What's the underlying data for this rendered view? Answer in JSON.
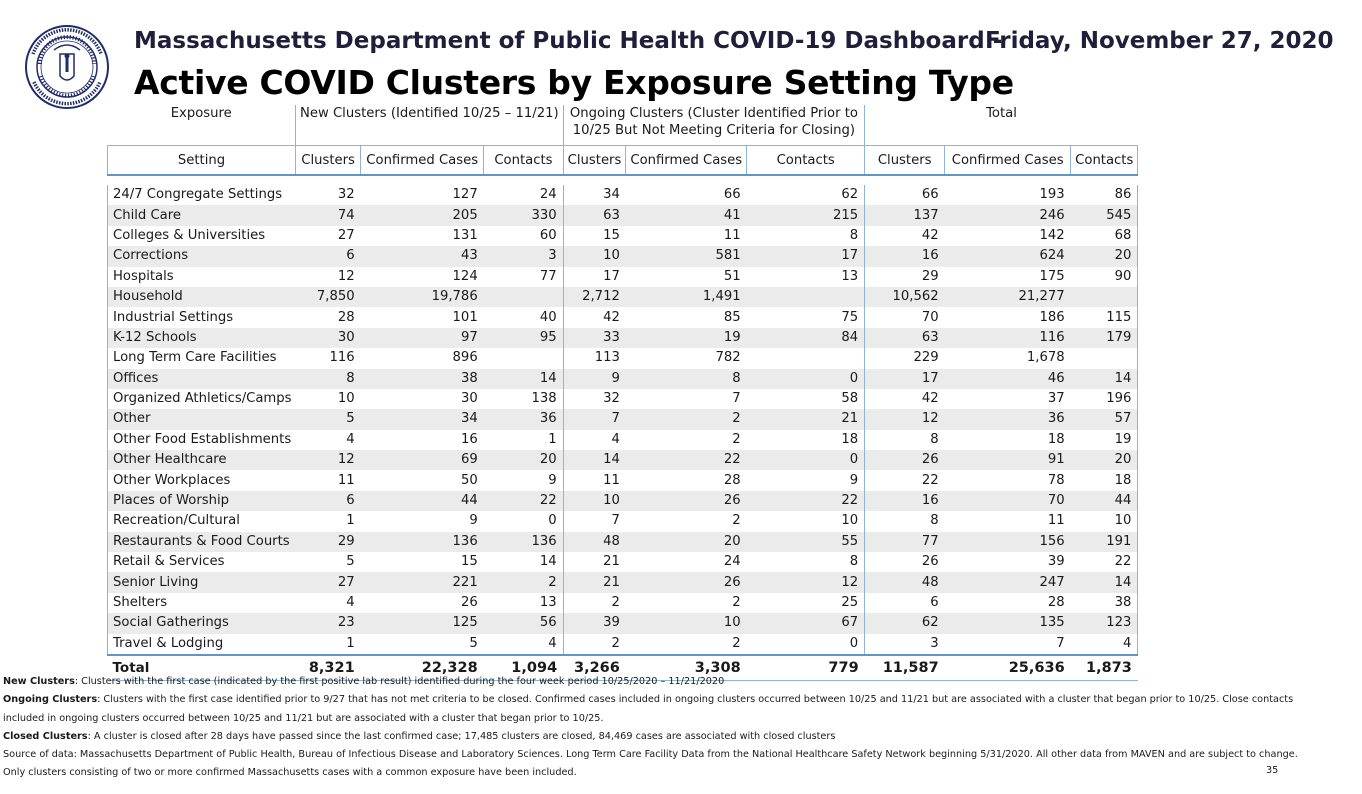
{
  "header": {
    "title_line1": "Massachusetts Department of Public Health COVID-19 Dashboard -",
    "date": "Friday, November 27, 2020",
    "title_line2": "Active COVID Clusters by Exposure Setting Type",
    "seal_text_top": "COMMONWEALTH OF MASSACHUSETTS",
    "seal_text_bottom": "DEPARTMENT OF PUBLIC HEALTH"
  },
  "table": {
    "group_headers": {
      "exposure": "Exposure",
      "new": "New Clusters (Identified 10/25 – 11/21)",
      "ongoing_line1": "Ongoing Clusters (Cluster Identified Prior to",
      "ongoing_line2": "10/25 But Not Meeting Criteria for Closing)",
      "total": "Total"
    },
    "sub_headers": [
      "Setting",
      "Clusters",
      "Confirmed Cases",
      "Contacts",
      "Clusters",
      "Confirmed Cases",
      "Contacts",
      "Clusters",
      "Confirmed Cases",
      "Contacts"
    ],
    "rows": [
      [
        "24/7 Congregate Settings",
        "32",
        "127",
        "24",
        "34",
        "66",
        "62",
        "66",
        "193",
        "86"
      ],
      [
        "Child Care",
        "74",
        "205",
        "330",
        "63",
        "41",
        "215",
        "137",
        "246",
        "545"
      ],
      [
        "Colleges & Universities",
        "27",
        "131",
        "60",
        "15",
        "11",
        "8",
        "42",
        "142",
        "68"
      ],
      [
        "Corrections",
        "6",
        "43",
        "3",
        "10",
        "581",
        "17",
        "16",
        "624",
        "20"
      ],
      [
        "Hospitals",
        "12",
        "124",
        "77",
        "17",
        "51",
        "13",
        "29",
        "175",
        "90"
      ],
      [
        "Household",
        "7,850",
        "19,786",
        "",
        "2,712",
        "1,491",
        "",
        "10,562",
        "21,277",
        ""
      ],
      [
        "Industrial Settings",
        "28",
        "101",
        "40",
        "42",
        "85",
        "75",
        "70",
        "186",
        "115"
      ],
      [
        "K-12 Schools",
        "30",
        "97",
        "95",
        "33",
        "19",
        "84",
        "63",
        "116",
        "179"
      ],
      [
        "Long Term Care Facilities",
        "116",
        "896",
        "",
        "113",
        "782",
        "",
        "229",
        "1,678",
        ""
      ],
      [
        "Offices",
        "8",
        "38",
        "14",
        "9",
        "8",
        "0",
        "17",
        "46",
        "14"
      ],
      [
        "Organized Athletics/Camps",
        "10",
        "30",
        "138",
        "32",
        "7",
        "58",
        "42",
        "37",
        "196"
      ],
      [
        "Other",
        "5",
        "34",
        "36",
        "7",
        "2",
        "21",
        "12",
        "36",
        "57"
      ],
      [
        "Other Food Establishments",
        "4",
        "16",
        "1",
        "4",
        "2",
        "18",
        "8",
        "18",
        "19"
      ],
      [
        "Other Healthcare",
        "12",
        "69",
        "20",
        "14",
        "22",
        "0",
        "26",
        "91",
        "20"
      ],
      [
        "Other Workplaces",
        "11",
        "50",
        "9",
        "11",
        "28",
        "9",
        "22",
        "78",
        "18"
      ],
      [
        "Places of Worship",
        "6",
        "44",
        "22",
        "10",
        "26",
        "22",
        "16",
        "70",
        "44"
      ],
      [
        "Recreation/Cultural",
        "1",
        "9",
        "0",
        "7",
        "2",
        "10",
        "8",
        "11",
        "10"
      ],
      [
        "Restaurants & Food Courts",
        "29",
        "136",
        "136",
        "48",
        "20",
        "55",
        "77",
        "156",
        "191"
      ],
      [
        "Retail & Services",
        "5",
        "15",
        "14",
        "21",
        "24",
        "8",
        "26",
        "39",
        "22"
      ],
      [
        "Senior Living",
        "27",
        "221",
        "2",
        "21",
        "26",
        "12",
        "48",
        "247",
        "14"
      ],
      [
        "Shelters",
        "4",
        "26",
        "13",
        "2",
        "2",
        "25",
        "6",
        "28",
        "38"
      ],
      [
        "Social Gatherings",
        "23",
        "125",
        "56",
        "39",
        "10",
        "67",
        "62",
        "135",
        "123"
      ],
      [
        "Travel & Lodging",
        "1",
        "5",
        "4",
        "2",
        "2",
        "0",
        "3",
        "7",
        "4"
      ]
    ],
    "total_row": [
      "Total",
      "8,321",
      "22,328",
      "1,094",
      "3,266",
      "3,308",
      "779",
      "11,587",
      "25,636",
      "1,873"
    ]
  },
  "notes": {
    "new_label": "New Clusters",
    "new_text": ": Clusters with the first case (indicated by the first positive lab result) identified during the four week period 10/25/2020 – 11/21/2020",
    "ongoing_label": "Ongoing Clusters",
    "ongoing_text": ": Clusters with the first case identified prior to 9/27 that has not met criteria to be closed.  Confirmed cases included in ongoing clusters occurred between 10/25 and 11/21  but are associated with a cluster that began prior to 10/25. Close contacts",
    "ongoing_text2": "included in ongoing clusters occurred between 10/25 and 11/21  but are associated with a cluster that began prior to 10/25.",
    "closed_label": "Closed Clusters",
    "closed_text": ": A cluster is closed after 28 days have passed since the last confirmed case; 17,485 clusters are closed, 84,469  cases are associated with closed clusters",
    "source_text": "Source of data: Massachusetts Department of Public Health, Bureau of Infectious Disease and Laboratory Sciences. Long Term Care Facility Data from the National Healthcare Safety Network beginning 5/31/2020.  All other data from MAVEN and are subject to change.",
    "only_text": "Only clusters consisting of two or more confirmed Massachusetts cases with a common exposure have been included.",
    "page_number": "35"
  },
  "colors": {
    "border_blue": "#8fb4d9",
    "row_shade": "#ebebeb",
    "seal_navy": "#1f2d6b"
  },
  "icons": [
    "state-seal-logo"
  ]
}
